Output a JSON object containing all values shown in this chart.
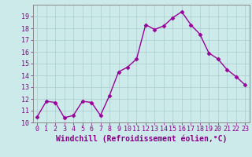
{
  "x": [
    0,
    1,
    2,
    3,
    4,
    5,
    6,
    7,
    8,
    9,
    10,
    11,
    12,
    13,
    14,
    15,
    16,
    17,
    18,
    19,
    20,
    21,
    22,
    23
  ],
  "y": [
    10.5,
    11.8,
    11.7,
    10.4,
    10.6,
    11.8,
    11.7,
    10.6,
    12.3,
    14.3,
    14.7,
    15.4,
    18.3,
    17.9,
    18.2,
    18.9,
    19.4,
    18.3,
    17.5,
    15.9,
    15.4,
    14.5,
    13.9,
    13.2
  ],
  "line_color": "#990099",
  "marker": "D",
  "marker_size": 2.5,
  "bg_color": "#cceaea",
  "grid_color": "#aacccc",
  "xlabel": "Windchill (Refroidissement éolien,°C)",
  "ylabel": "",
  "ylim": [
    10,
    20
  ],
  "xlim": [
    -0.5,
    23.5
  ],
  "yticks": [
    10,
    11,
    12,
    13,
    14,
    15,
    16,
    17,
    18,
    19
  ],
  "xticks": [
    0,
    1,
    2,
    3,
    4,
    5,
    6,
    7,
    8,
    9,
    10,
    11,
    12,
    13,
    14,
    15,
    16,
    17,
    18,
    19,
    20,
    21,
    22,
    23
  ],
  "tick_fontsize": 6.0,
  "xlabel_fontsize": 7.0,
  "axis_color": "#880088",
  "spine_color": "#888888",
  "linewidth": 1.0
}
